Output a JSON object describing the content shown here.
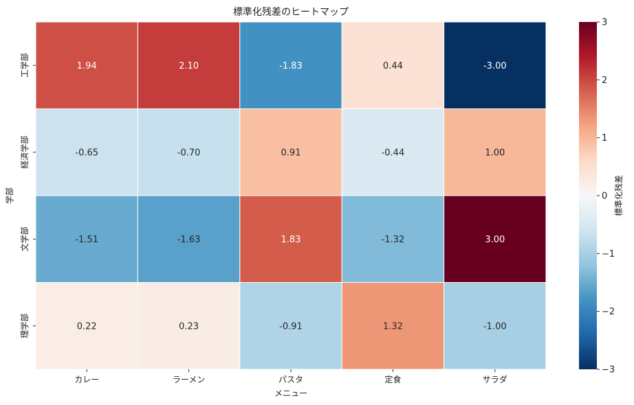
{
  "chart_data": {
    "type": "heatmap",
    "title": "標準化残差のヒートマップ",
    "xlabel": "メニュー",
    "ylabel": "学部",
    "x_categories": [
      "カレー",
      "ラーメン",
      "パスタ",
      "定食",
      "サラダ"
    ],
    "y_categories": [
      "工学部",
      "経済学部",
      "文学部",
      "理学部"
    ],
    "values": [
      [
        1.94,
        2.1,
        -1.83,
        0.44,
        -3.0
      ],
      [
        -0.65,
        -0.7,
        0.91,
        -0.44,
        1.0
      ],
      [
        -1.51,
        -1.63,
        1.83,
        -1.32,
        3.0
      ],
      [
        0.22,
        0.23,
        -0.91,
        1.32,
        -1.0
      ]
    ],
    "value_labels": [
      [
        "1.94",
        "2.10",
        "-1.83",
        "0.44",
        "-3.00"
      ],
      [
        "-0.65",
        "-0.70",
        "0.91",
        "-0.44",
        "1.00"
      ],
      [
        "-1.51",
        "-1.63",
        "1.83",
        "-1.32",
        "3.00"
      ],
      [
        "0.22",
        "0.23",
        "-0.91",
        "1.32",
        "-1.00"
      ]
    ],
    "colorbar": {
      "label": "標準化残差",
      "range": [
        -3,
        3
      ],
      "ticks": [
        3,
        2,
        1,
        0,
        -1,
        -2,
        -3
      ],
      "tick_labels": [
        "3",
        "2",
        "1",
        "0",
        "−1",
        "−2",
        "−3"
      ],
      "colormap": "RdBu_r"
    }
  }
}
